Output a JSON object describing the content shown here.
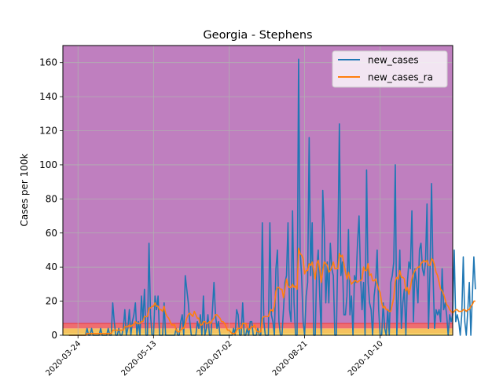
{
  "chart_data": {
    "type": "line",
    "title": "Georgia - Stephens",
    "xlabel": "",
    "ylabel": "Cases per 100k",
    "x_start": "2020-03-18",
    "x_end": "2020-11-20",
    "xlim": [
      "2020-03-14",
      "2020-11-27"
    ],
    "ylim": [
      0,
      170
    ],
    "x_ticks": [
      "2020-03-24",
      "2020-05-13",
      "2020-07-02",
      "2020-08-21",
      "2020-10-10"
    ],
    "y_ticks": [
      0,
      20,
      40,
      60,
      80,
      100,
      120,
      140,
      160
    ],
    "grid": true,
    "legend_position": "upper right",
    "background_bands": [
      {
        "from": 0,
        "to": 1,
        "color": "#ffe066"
      },
      {
        "from": 1,
        "to": 4,
        "color": "#f5c25e"
      },
      {
        "from": 4,
        "to": 7,
        "color": "#ee6e70"
      },
      {
        "from": 7,
        "to": 170,
        "color": "#bf7fbf"
      }
    ],
    "band_boundary_line": {
      "y": 7,
      "color": "#e8404d"
    },
    "series": [
      {
        "name": "new_cases",
        "color": "#1f77b4",
        "values": [
          0,
          0,
          0,
          0,
          0,
          0,
          0,
          0,
          0,
          0,
          0,
          0,
          4,
          0,
          0,
          4,
          0,
          0,
          0,
          0,
          0,
          4,
          0,
          0,
          0,
          0,
          4,
          0,
          0,
          19,
          8,
          0,
          0,
          4,
          0,
          0,
          4,
          15,
          0,
          4,
          15,
          0,
          8,
          12,
          19,
          0,
          8,
          0,
          23,
          8,
          27,
          0,
          0,
          54,
          12,
          0,
          0,
          23,
          15,
          23,
          0,
          0,
          0,
          19,
          0,
          0,
          0,
          0,
          0,
          0,
          0,
          4,
          0,
          0,
          8,
          12,
          0,
          35,
          27,
          19,
          8,
          0,
          0,
          0,
          0,
          8,
          4,
          12,
          0,
          23,
          0,
          4,
          12,
          0,
          0,
          15,
          31,
          12,
          4,
          8,
          0,
          0,
          0,
          0,
          0,
          0,
          0,
          0,
          0,
          4,
          0,
          15,
          12,
          0,
          0,
          19,
          0,
          0,
          4,
          0,
          8,
          8,
          0,
          0,
          0,
          4,
          0,
          0,
          66,
          8,
          0,
          0,
          0,
          66,
          12,
          8,
          0,
          39,
          50,
          8,
          0,
          0,
          15,
          31,
          35,
          66,
          15,
          8,
          73,
          19,
          0,
          0,
          162,
          50,
          35,
          8,
          0,
          23,
          31,
          116,
          35,
          66,
          0,
          0,
          39,
          50,
          23,
          0,
          85,
          62,
          19,
          43,
          19,
          54,
          39,
          35,
          0,
          0,
          50,
          124,
          35,
          43,
          12,
          12,
          23,
          62,
          12,
          23,
          0,
          35,
          31,
          54,
          70,
          35,
          15,
          31,
          0,
          97,
          31,
          19,
          15,
          0,
          23,
          31,
          50,
          15,
          0,
          0,
          19,
          4,
          0,
          15,
          0,
          31,
          35,
          43,
          100,
          0,
          23,
          50,
          4,
          19,
          27,
          0,
          31,
          43,
          39,
          73,
          8,
          39,
          31,
          19,
          50,
          54,
          39,
          35,
          43,
          77,
          4,
          39,
          89,
          35,
          4,
          15,
          12,
          15,
          8,
          39,
          15,
          19,
          12,
          0,
          12,
          8,
          12,
          50,
          8,
          12,
          8,
          0,
          12,
          46,
          8,
          0,
          15,
          31,
          0,
          23,
          46,
          27
        ]
      },
      {
        "name": "new_cases_ra",
        "color": "#ff7f0e",
        "values": [
          0,
          0,
          0,
          0,
          0,
          0,
          0,
          0,
          0,
          0,
          0,
          0,
          1,
          1,
          1,
          1,
          1,
          1,
          1,
          1,
          1,
          1,
          1,
          1,
          1,
          1,
          1,
          1,
          1,
          3,
          3,
          3,
          3,
          3,
          3,
          3,
          3,
          5,
          5,
          5,
          6,
          5,
          6,
          6,
          8,
          7,
          7,
          7,
          8,
          8,
          11,
          11,
          11,
          16,
          16,
          17,
          17,
          19,
          17,
          17,
          15,
          15,
          14,
          17,
          13,
          11,
          10,
          8,
          6,
          6,
          6,
          3,
          2,
          2,
          3,
          4,
          4,
          7,
          10,
          12,
          13,
          12,
          11,
          14,
          12,
          10,
          10,
          6,
          6,
          8,
          8,
          7,
          7,
          8,
          7,
          9,
          10,
          12,
          12,
          11,
          10,
          8,
          8,
          7,
          5,
          3,
          3,
          2,
          1,
          1,
          1,
          3,
          4,
          4,
          4,
          7,
          7,
          7,
          5,
          3,
          4,
          5,
          5,
          6,
          3,
          2,
          2,
          2,
          10,
          11,
          11,
          11,
          11,
          14,
          15,
          14,
          17,
          26,
          28,
          28,
          27,
          27,
          22,
          27,
          33,
          29,
          28,
          28,
          30,
          28,
          29,
          27,
          51,
          48,
          47,
          45,
          36,
          38,
          38,
          42,
          41,
          43,
          38,
          33,
          42,
          44,
          39,
          31,
          38,
          43,
          42,
          41,
          37,
          38,
          40,
          43,
          39,
          39,
          39,
          48,
          46,
          47,
          42,
          37,
          33,
          37,
          33,
          30,
          31,
          32,
          32,
          31,
          32,
          32,
          33,
          40,
          38,
          38,
          42,
          35,
          36,
          32,
          32,
          33,
          30,
          27,
          25,
          19,
          16,
          17,
          15,
          15,
          14,
          14,
          18,
          22,
          32,
          34,
          33,
          38,
          34,
          34,
          33,
          26,
          28,
          24,
          28,
          33,
          36,
          38,
          39,
          40,
          40,
          42,
          43,
          44,
          43,
          44,
          41,
          41,
          45,
          44,
          41,
          37,
          35,
          31,
          27,
          26,
          24,
          21,
          18,
          17,
          15,
          14,
          13,
          14,
          15,
          15,
          14,
          14,
          14,
          15,
          15,
          14,
          15,
          15,
          17,
          18,
          20,
          20
        ]
      }
    ]
  }
}
